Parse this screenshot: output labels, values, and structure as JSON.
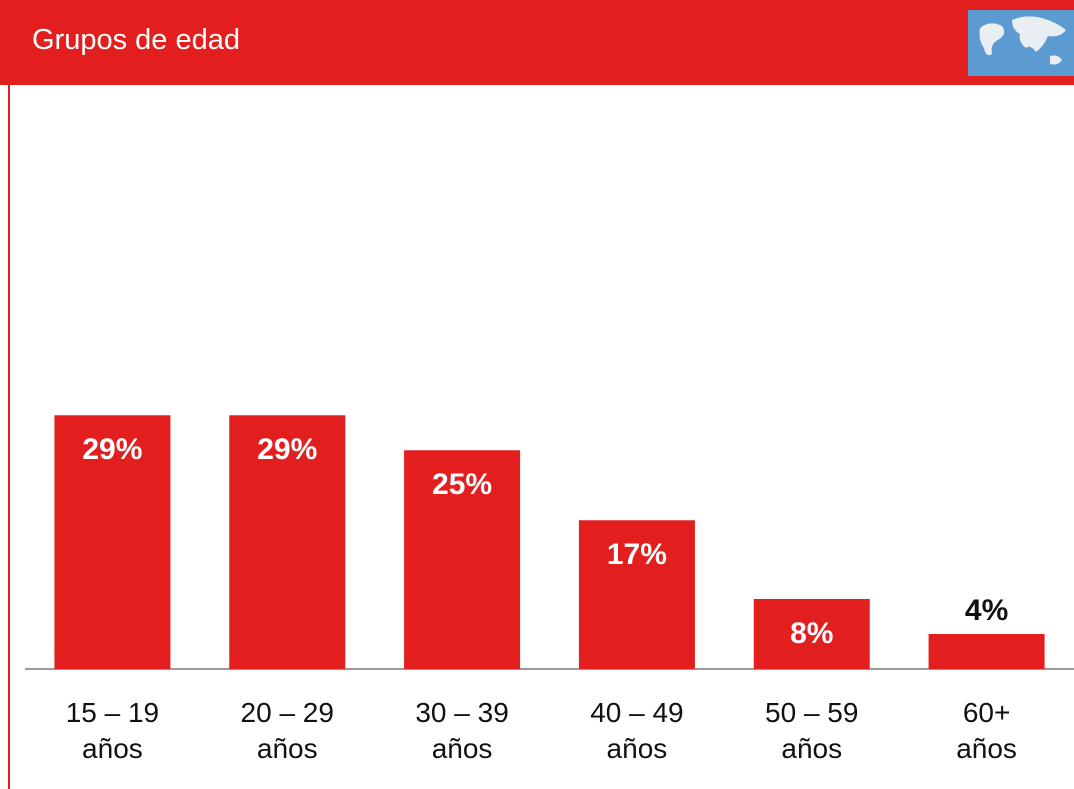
{
  "chart_data": {
    "type": "bar",
    "title": "Grupos de edad",
    "categories": [
      "15 – 19\naños",
      "20 – 29\naños",
      "30 – 39\naños",
      "40 – 49\naños",
      "50 – 59\naños",
      "60+\naños"
    ],
    "values": [
      29,
      29,
      25,
      17,
      8,
      4
    ],
    "value_labels": [
      "29%",
      "29%",
      "25%",
      "17%",
      "8%",
      "4%"
    ],
    "color": "#e31e1e"
  }
}
